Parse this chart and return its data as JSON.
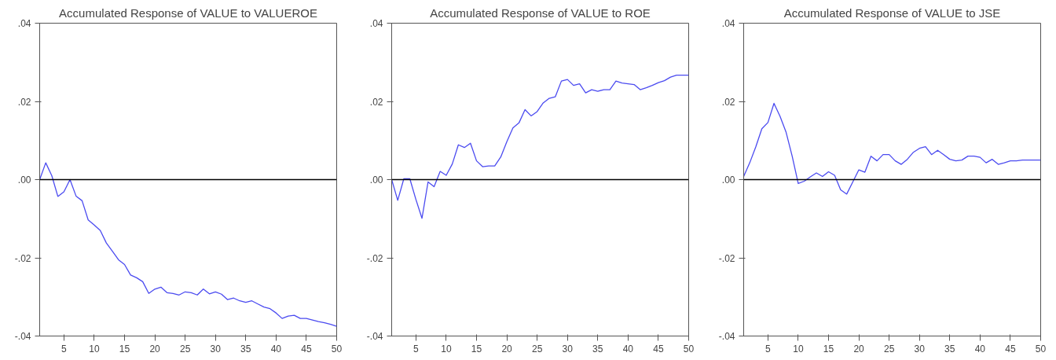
{
  "chart_data": [
    {
      "type": "line",
      "title": "Accumulated Response of VALUE to VALUEROE",
      "x": [
        1,
        2,
        3,
        4,
        5,
        6,
        7,
        8,
        9,
        10,
        11,
        12,
        13,
        14,
        15,
        16,
        17,
        18,
        19,
        20,
        21,
        22,
        23,
        24,
        25,
        26,
        27,
        28,
        29,
        30,
        31,
        32,
        33,
        34,
        35,
        36,
        37,
        38,
        39,
        40,
        41,
        42,
        43,
        44,
        45,
        46,
        47,
        48,
        49,
        50
      ],
      "series": [
        {
          "color": "#4b4bf0",
          "values": [
            0,
            0.0043,
            0.001,
            -0.0043,
            -0.0031,
            0,
            -0.0042,
            -0.0054,
            -0.0103,
            -0.0116,
            -0.013,
            -0.0162,
            -0.0183,
            -0.0205,
            -0.0217,
            -0.0244,
            -0.0251,
            -0.0261,
            -0.0291,
            -0.028,
            -0.0275,
            -0.0289,
            -0.0291,
            -0.0295,
            -0.0287,
            -0.0289,
            -0.0295,
            -0.028,
            -0.0292,
            -0.0287,
            -0.0293,
            -0.0307,
            -0.0303,
            -0.031,
            -0.0314,
            -0.031,
            -0.0318,
            -0.0326,
            -0.033,
            -0.0341,
            -0.0355,
            -0.0349,
            -0.0347,
            -0.0355,
            -0.0355,
            -0.0359,
            -0.0363,
            -0.0366,
            -0.037,
            -0.0375
          ]
        }
      ],
      "xlim": [
        1,
        50
      ],
      "xticks": [
        5,
        10,
        15,
        20,
        25,
        30,
        35,
        40,
        45,
        50
      ],
      "ylim": [
        -0.04,
        0.04
      ],
      "yticks": [
        {
          "value": -0.04,
          "label": "-.04"
        },
        {
          "value": -0.02,
          "label": "-.02"
        },
        {
          "value": 0,
          "label": ".00"
        },
        {
          "value": 0.02,
          "label": ".02"
        },
        {
          "value": 0.04,
          "label": ".04"
        }
      ],
      "ref_lines": [
        {
          "axis": "y",
          "value": 0,
          "color": "#000000"
        }
      ]
    },
    {
      "type": "line",
      "title": "Accumulated Response of VALUE to ROE",
      "x": [
        1,
        2,
        3,
        4,
        5,
        6,
        7,
        8,
        9,
        10,
        11,
        12,
        13,
        14,
        15,
        16,
        17,
        18,
        19,
        20,
        21,
        22,
        23,
        24,
        25,
        26,
        27,
        28,
        29,
        30,
        31,
        32,
        33,
        34,
        35,
        36,
        37,
        38,
        39,
        40,
        41,
        42,
        43,
        44,
        45,
        46,
        47,
        48,
        49,
        50
      ],
      "series": [
        {
          "color": "#4b4bf0",
          "values": [
            0,
            -0.0053,
            0.0002,
            0.0002,
            -0.0051,
            -0.0099,
            -0.0006,
            -0.0018,
            0.0021,
            0.0011,
            0.004,
            0.0089,
            0.0082,
            0.0093,
            0.0048,
            0.0033,
            0.0035,
            0.0035,
            0.0058,
            0.0097,
            0.0132,
            0.0145,
            0.0179,
            0.0163,
            0.0174,
            0.0196,
            0.0208,
            0.0212,
            0.0252,
            0.0256,
            0.0241,
            0.0245,
            0.0222,
            0.023,
            0.0226,
            0.023,
            0.023,
            0.0252,
            0.0247,
            0.0245,
            0.0243,
            0.023,
            0.0235,
            0.0241,
            0.0248,
            0.0253,
            0.0262,
            0.0267,
            0.0267,
            0.0267
          ]
        }
      ],
      "xlim": [
        1,
        50
      ],
      "xticks": [
        5,
        10,
        15,
        20,
        25,
        30,
        35,
        40,
        45,
        50
      ],
      "ylim": [
        -0.04,
        0.04
      ],
      "yticks": [
        {
          "value": -0.04,
          "label": "-.04"
        },
        {
          "value": -0.02,
          "label": "-.02"
        },
        {
          "value": 0,
          "label": ".00"
        },
        {
          "value": 0.02,
          "label": ".02"
        },
        {
          "value": 0.04,
          "label": ".04"
        }
      ],
      "ref_lines": [
        {
          "axis": "y",
          "value": 0,
          "color": "#000000"
        }
      ]
    },
    {
      "type": "line",
      "title": "Accumulated Response of VALUE to JSE",
      "x": [
        1,
        2,
        3,
        4,
        5,
        6,
        7,
        8,
        9,
        10,
        11,
        12,
        13,
        14,
        15,
        16,
        17,
        18,
        19,
        20,
        21,
        22,
        23,
        24,
        25,
        26,
        27,
        28,
        29,
        30,
        31,
        32,
        33,
        34,
        35,
        36,
        37,
        38,
        39,
        40,
        41,
        42,
        43,
        44,
        45,
        46,
        47,
        48,
        49,
        50
      ],
      "series": [
        {
          "color": "#4b4bf0",
          "values": [
            0.0008,
            0.0043,
            0.0084,
            0.013,
            0.0146,
            0.0195,
            0.0162,
            0.0121,
            0.006,
            -0.001,
            -0.0004,
            0.0007,
            0.0017,
            0.0008,
            0.002,
            0.0011,
            -0.0026,
            -0.0037,
            -0.0006,
            0.0025,
            0.0019,
            0.006,
            0.0048,
            0.0064,
            0.0064,
            0.0048,
            0.0039,
            0.0052,
            0.007,
            0.008,
            0.0084,
            0.0064,
            0.0075,
            0.0064,
            0.0052,
            0.0048,
            0.005,
            0.006,
            0.006,
            0.0057,
            0.0043,
            0.0052,
            0.0039,
            0.0043,
            0.0048,
            0.0048,
            0.005,
            0.005,
            0.005,
            0.005
          ]
        }
      ],
      "xlim": [
        1,
        50
      ],
      "xticks": [
        5,
        10,
        15,
        20,
        25,
        30,
        35,
        40,
        45,
        50
      ],
      "ylim": [
        -0.04,
        0.04
      ],
      "yticks": [
        {
          "value": -0.04,
          "label": "-.04"
        },
        {
          "value": -0.02,
          "label": "-.02"
        },
        {
          "value": 0,
          "label": ".00"
        },
        {
          "value": 0.02,
          "label": ".02"
        },
        {
          "value": 0.04,
          "label": ".04"
        }
      ],
      "ref_lines": [
        {
          "axis": "y",
          "value": 0,
          "color": "#000000"
        }
      ]
    }
  ]
}
